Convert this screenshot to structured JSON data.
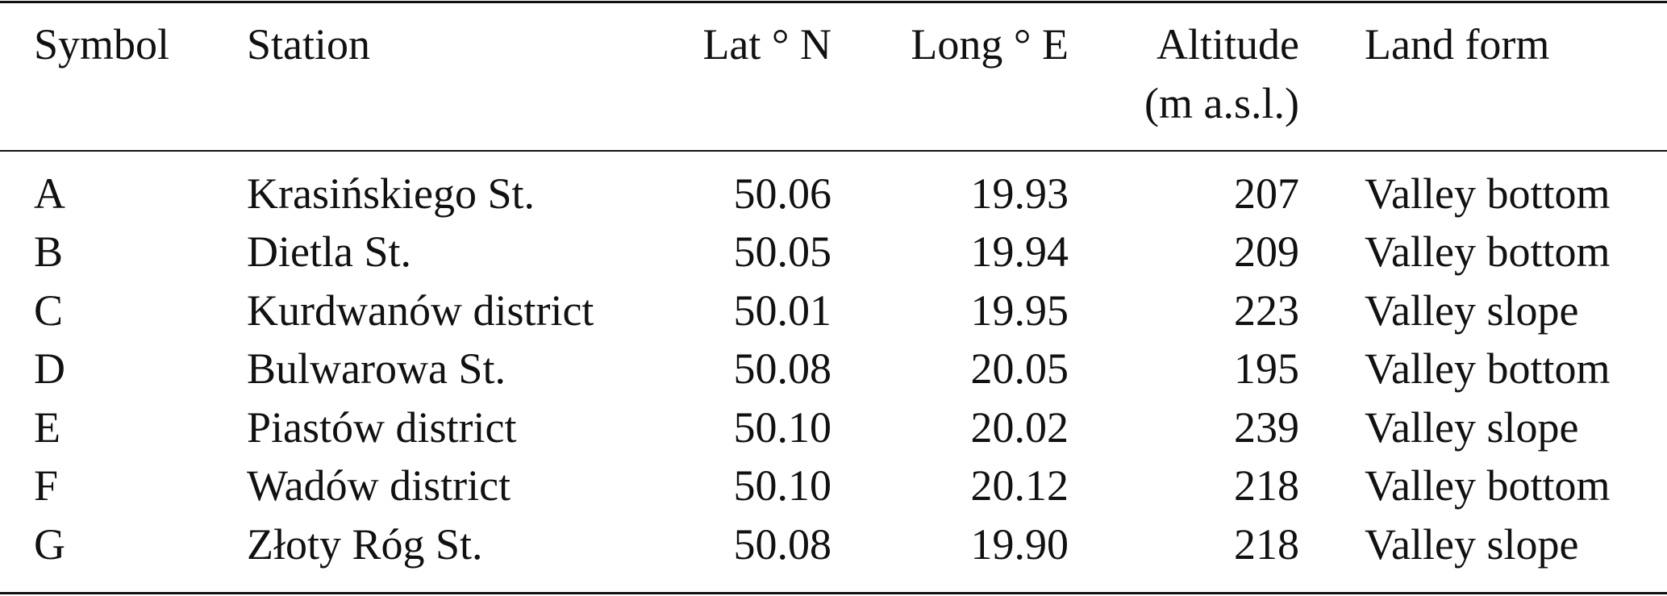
{
  "table": {
    "headers": [
      "Symbol",
      "Station",
      "Lat ° N",
      "Long ° E",
      "Altitude (m a.s.l.)",
      "Land form"
    ],
    "rows": [
      [
        "A",
        "Krasińskiego St.",
        "50.06",
        "19.93",
        "207",
        "Valley bottom"
      ],
      [
        "B",
        "Dietla St.",
        "50.05",
        "19.94",
        "209",
        "Valley bottom"
      ],
      [
        "C",
        "Kurdwanów district",
        "50.01",
        "19.95",
        "223",
        "Valley slope"
      ],
      [
        "D",
        "Bulwarowa St.",
        "50.08",
        "20.05",
        "195",
        "Valley bottom"
      ],
      [
        "E",
        "Piastów district",
        "50.10",
        "20.02",
        "239",
        "Valley slope"
      ],
      [
        "F",
        "Wadów district",
        "50.10",
        "20.12",
        "218",
        "Valley bottom"
      ],
      [
        "G",
        "Złoty Róg St.",
        "50.08",
        "19.90",
        "218",
        "Valley slope"
      ]
    ]
  }
}
